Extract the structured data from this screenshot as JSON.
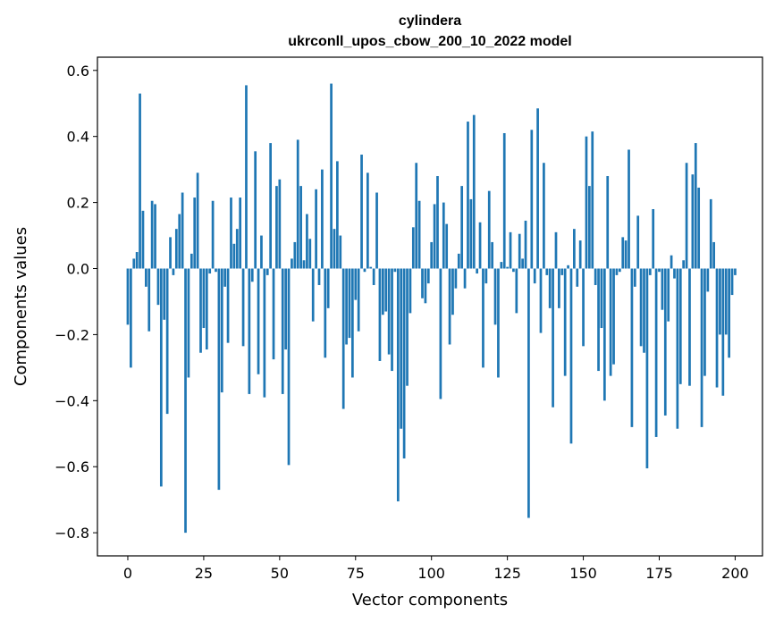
{
  "chart_data": {
    "type": "bar",
    "title_line1": "cylindera",
    "title_line2": "ukrconll_upos_cbow_200_10_2022 model",
    "xlabel": "Vector components",
    "ylabel": "Components values",
    "xlim": [
      -10,
      209
    ],
    "ylim": [
      -0.87,
      0.64
    ],
    "x_ticks": [
      0,
      25,
      50,
      75,
      100,
      125,
      150,
      175,
      200
    ],
    "y_ticks": [
      -0.8,
      -0.6,
      -0.4,
      -0.2,
      0.0,
      0.2,
      0.4,
      0.6
    ],
    "y_tick_labels": [
      "−0.8",
      "−0.6",
      "−0.4",
      "−0.2",
      "0.0",
      "0.2",
      "0.4",
      "0.6"
    ],
    "bar_color": "#1f77b4",
    "grid": false,
    "values": [
      -0.17,
      -0.3,
      0.03,
      0.05,
      0.53,
      0.175,
      -0.055,
      -0.19,
      0.205,
      0.195,
      -0.11,
      -0.66,
      -0.155,
      -0.44,
      0.095,
      -0.02,
      0.12,
      0.165,
      0.23,
      -0.8,
      -0.33,
      0.045,
      0.215,
      0.29,
      -0.255,
      -0.18,
      -0.245,
      -0.015,
      0.205,
      -0.01,
      -0.67,
      -0.375,
      -0.055,
      -0.225,
      0.215,
      0.075,
      0.12,
      0.215,
      -0.235,
      0.555,
      -0.38,
      -0.04,
      0.355,
      -0.32,
      0.1,
      -0.39,
      -0.02,
      0.38,
      -0.275,
      0.25,
      0.27,
      -0.38,
      -0.245,
      -0.595,
      0.03,
      0.08,
      0.39,
      0.25,
      0.025,
      0.165,
      0.09,
      -0.16,
      0.24,
      -0.05,
      0.3,
      -0.27,
      -0.12,
      0.56,
      0.12,
      0.325,
      0.1,
      -0.425,
      -0.23,
      -0.21,
      -0.33,
      -0.095,
      -0.19,
      0.345,
      -0.01,
      0.29,
      0.005,
      -0.05,
      0.23,
      -0.28,
      -0.14,
      -0.13,
      -0.26,
      -0.31,
      -0.01,
      -0.705,
      -0.485,
      -0.575,
      -0.355,
      -0.135,
      0.125,
      0.32,
      0.205,
      -0.09,
      -0.105,
      -0.045,
      0.08,
      0.195,
      0.28,
      -0.395,
      0.2,
      0.135,
      -0.23,
      -0.14,
      -0.06,
      0.045,
      0.25,
      -0.06,
      0.445,
      0.21,
      0.465,
      -0.015,
      0.14,
      -0.3,
      -0.045,
      0.235,
      0.08,
      -0.17,
      -0.33,
      0.02,
      0.41,
      0.005,
      0.11,
      -0.01,
      -0.135,
      0.105,
      0.03,
      0.145,
      -0.755,
      0.42,
      -0.045,
      0.485,
      -0.195,
      0.32,
      -0.02,
      -0.12,
      -0.42,
      0.11,
      -0.12,
      -0.02,
      -0.325,
      0.01,
      -0.53,
      0.12,
      -0.055,
      0.085,
      -0.235,
      0.4,
      0.25,
      0.415,
      -0.05,
      -0.31,
      -0.18,
      -0.4,
      0.28,
      -0.325,
      -0.29,
      -0.02,
      -0.01,
      0.095,
      0.085,
      0.36,
      -0.48,
      -0.055,
      0.16,
      -0.235,
      -0.255,
      -0.605,
      -0.02,
      0.18,
      -0.51,
      -0.01,
      -0.125,
      -0.445,
      -0.16,
      0.04,
      -0.03,
      -0.485,
      -0.35,
      0.025,
      0.32,
      -0.355,
      0.285,
      0.38,
      0.245,
      -0.48,
      -0.325,
      -0.07,
      0.21,
      0.08,
      -0.36,
      -0.2,
      -0.385,
      -0.2,
      -0.27,
      -0.08,
      -0.02
    ]
  }
}
